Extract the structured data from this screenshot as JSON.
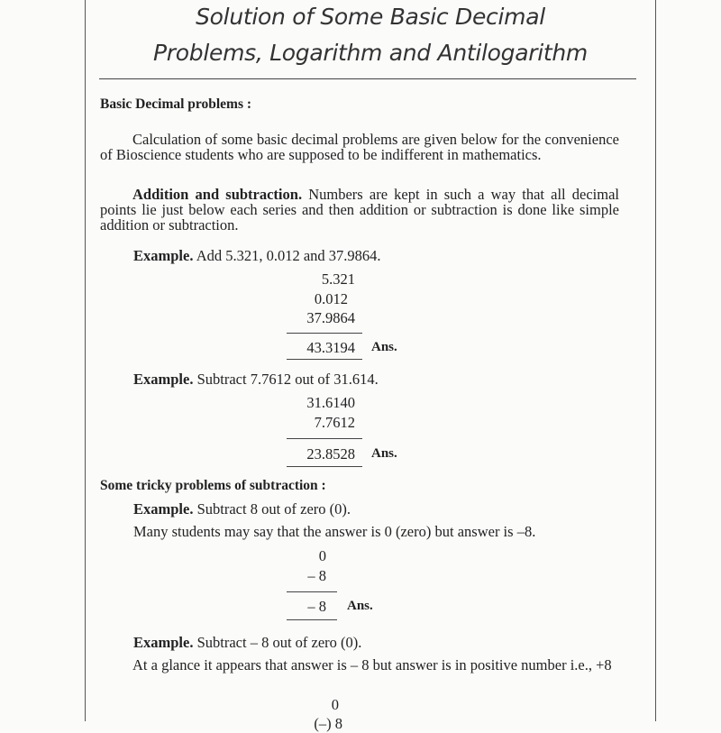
{
  "title": {
    "line1": "Solution of Some Basic Decimal",
    "line2": "Problems, Logarithm and Antilogarithm"
  },
  "section1": {
    "heading": "Basic Decimal problems :",
    "intro": "Calculation of some basic decimal problems are given below for the convenience of Bioscience students who are supposed to be indifferent in mathematics.",
    "add_sub_label": "Addition and subtraction.",
    "add_sub_text": "Numbers are kept in such a way that all decimal points lie just below each series and then addition or subtraction is done like simple addition or subtraction.",
    "example1": {
      "label": "Example.",
      "text": "Add 5.321, 0.012 and 37.9864.",
      "rows": [
        "5.321",
        "0.012",
        "37.9864"
      ],
      "result": "43.3194",
      "ans": "Ans."
    },
    "example2": {
      "label": "Example.",
      "text": "Subtract 7.7612 out of 31.614.",
      "rows": [
        "31.6140",
        "7.7612"
      ],
      "result": "23.8528",
      "ans": "Ans."
    }
  },
  "section2": {
    "heading": "Some tricky problems of subtraction :",
    "example3": {
      "label": "Example.",
      "text": "Subtract 8 out of zero (0).",
      "note": "Many students may say that the answer is 0 (zero) but answer is –8.",
      "rows": [
        "0",
        "– 8"
      ],
      "result": "– 8",
      "ans": "Ans."
    },
    "example4": {
      "label": "Example.",
      "text": "Subtract – 8 out of zero (0).",
      "note": "At a glance it appears that answer is – 8 but answer is in positive number i.e., +8",
      "rows": [
        "0",
        "(–) 8"
      ]
    }
  }
}
